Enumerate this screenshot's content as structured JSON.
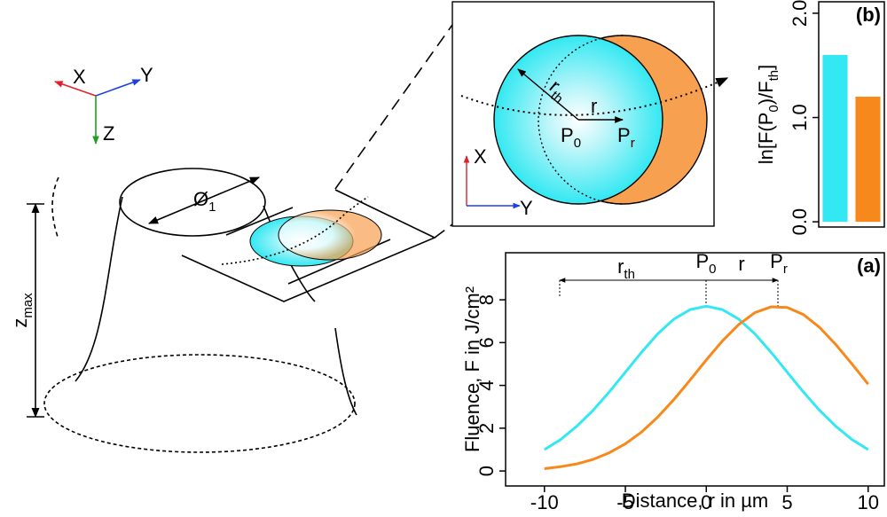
{
  "diagram": {
    "axes": [
      "X",
      "Y",
      "Z"
    ],
    "diameter": {
      "main": "Ø",
      "sub": "1"
    },
    "height": {
      "main": "z",
      "sub": "max"
    },
    "inset": {
      "radius": {
        "main": "r",
        "sub": "th"
      },
      "shift": "r",
      "center": {
        "main": "P",
        "sub": "0"
      },
      "shifted": {
        "main": "P",
        "sub": "r"
      },
      "axes": [
        "X",
        "Y"
      ]
    }
  },
  "chart_data": [
    {
      "type": "line",
      "panel_label": "(a)",
      "xlabel": "Distance, r in µm",
      "ylabel": "Fluence, F in J/cm²",
      "x": [
        -10,
        -9,
        -8,
        -7,
        -6,
        -5,
        -4,
        -3,
        -2,
        -1,
        0,
        1,
        2,
        3,
        4,
        5,
        6,
        7,
        8,
        9,
        10
      ],
      "series": [
        {
          "color": "#33e8f2",
          "values": [
            1.0,
            1.47,
            2.09,
            2.83,
            3.69,
            4.62,
            5.55,
            6.41,
            7.1,
            7.54,
            7.7,
            7.54,
            7.1,
            6.41,
            5.55,
            4.62,
            3.69,
            2.83,
            2.09,
            1.47,
            1.0
          ]
        },
        {
          "color": "#f7891c",
          "values": [
            0.11,
            0.2,
            0.33,
            0.54,
            0.85,
            1.27,
            1.82,
            2.52,
            3.34,
            4.25,
            5.19,
            6.08,
            6.84,
            7.4,
            7.67,
            7.64,
            7.31,
            6.71,
            5.91,
            5.0,
            4.06
          ]
        }
      ],
      "xlim": [
        -12.4,
        11.0
      ],
      "ylim": [
        -0.7,
        10.2
      ],
      "xticks": [
        -10,
        -5,
        0,
        5,
        10
      ],
      "yticks": [
        0,
        2,
        4,
        6,
        8
      ],
      "annotations": [
        {
          "main": "r",
          "sub": "th"
        },
        {
          "main": "P",
          "sub": "0"
        },
        {
          "main": "r"
        },
        {
          "main": "P",
          "sub": "r"
        }
      ]
    },
    {
      "type": "bar",
      "panel_label": "(b)",
      "ylabel": [
        "ln[F(P",
        "0",
        ")/F",
        "th",
        "]"
      ],
      "categories": [
        null,
        null
      ],
      "values": [
        1.6,
        1.2
      ],
      "colors": [
        "#33e8f2",
        "#f7891c"
      ],
      "ylim": [
        -0.05,
        2.11
      ],
      "yticks": [
        {
          "value": 0,
          "label": "0.0"
        },
        {
          "value": 1,
          "label": "1.0"
        },
        {
          "value": 2,
          "label": "2.0"
        }
      ]
    }
  ]
}
